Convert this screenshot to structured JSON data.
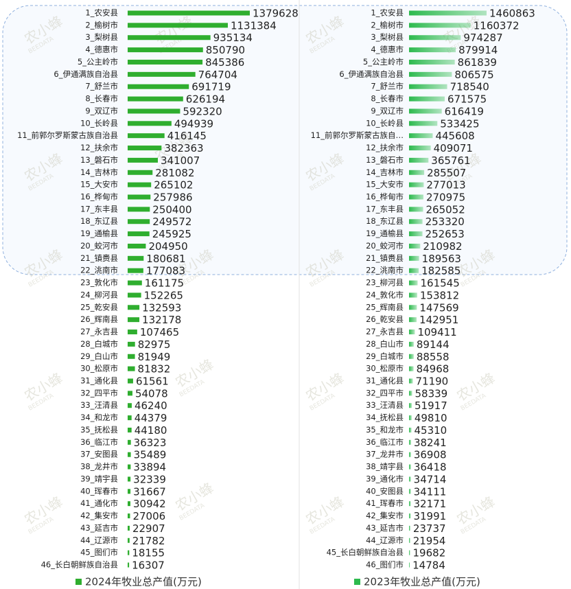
{
  "watermark": {
    "text": "农小蜂",
    "sub": "BEEDATA"
  },
  "chart_data": [
    {
      "type": "bar",
      "orientation": "horizontal",
      "categories": [
        "1_农安县",
        "2_榆树市",
        "3_梨树县",
        "4_德惠市",
        "5_公主岭市",
        "6_伊通满族自治县",
        "7_舒兰市",
        "8_长春市",
        "9_双辽市",
        "10_长岭县",
        "11_前郭尔罗斯蒙古族自治县",
        "12_扶余市",
        "13_磐石市",
        "14_吉林市",
        "15_大安市",
        "16_桦甸市",
        "17_东丰县",
        "18_东辽县",
        "19_通榆县",
        "20_蛟河市",
        "21_镇赉县",
        "22_洮南市",
        "23_敦化市",
        "24_柳河县",
        "25_乾安县",
        "26_辉南县",
        "27_永吉县",
        "28_白城市",
        "29_白山市",
        "30_松原市",
        "31_通化县",
        "32_四平市",
        "33_汪清县",
        "34_和龙市",
        "35_抚松县",
        "36_临江市",
        "37_安图县",
        "38_龙井市",
        "39_靖宇县",
        "40_珲春市",
        "41_通化市",
        "42_集安市",
        "43_延吉市",
        "44_辽源市",
        "45_图们市",
        "46_长白朝鲜族自治县"
      ],
      "series": [
        {
          "name": "2024年牧业总产值(万元)",
          "color": "#2fae2f",
          "gradient": false,
          "values": [
            1379628,
            1131384,
            935134,
            850790,
            845386,
            764704,
            691719,
            626194,
            592320,
            494939,
            416145,
            382363,
            341007,
            281082,
            265102,
            257986,
            250400,
            249572,
            245925,
            204950,
            180681,
            177083,
            161175,
            152265,
            132593,
            132178,
            107465,
            82975,
            81949,
            81832,
            61561,
            54078,
            46240,
            44379,
            44180,
            36323,
            35489,
            33894,
            32339,
            31667,
            30942,
            27006,
            22907,
            21782,
            18155,
            16307
          ]
        }
      ]
    },
    {
      "type": "bar",
      "orientation": "horizontal",
      "categories": [
        "1_农安县",
        "2_榆树市",
        "3_梨树县",
        "4_德惠市",
        "5_公主岭市",
        "6_伊通满族自治县",
        "7_舒兰市",
        "8_长春市",
        "9_双辽市",
        "10_长岭县",
        "11_前郭尔罗斯蒙古族自…",
        "12_扶余市",
        "13_磐石市",
        "14_吉林市",
        "15_大安市",
        "16_桦甸市",
        "17_东丰县",
        "18_东辽县",
        "19_通榆县",
        "20_蛟河市",
        "21_镇赉县",
        "22_洮南市",
        "23_柳河县",
        "24_敦化市",
        "25_辉南县",
        "26_乾安县",
        "27_永吉县",
        "28_白山市",
        "29_白城市",
        "30_松原市",
        "31_通化县",
        "32_四平市",
        "33_汪清县",
        "34_抚松县",
        "35_和龙市",
        "36_临江市",
        "37_龙井市",
        "38_靖宇县",
        "39_通化市",
        "40_安图县",
        "41_珲春市",
        "42_集安市",
        "43_延吉市",
        "44_辽源市",
        "45_长白朝鲜族自治县",
        "46_图们市"
      ],
      "series": [
        {
          "name": "2023年牧业总产值(万元)",
          "color": "#2dba4e",
          "gradient": true,
          "values": [
            1460863,
            1160372,
            974287,
            879914,
            861839,
            806575,
            718540,
            671575,
            616419,
            533425,
            445608,
            409071,
            365761,
            285507,
            277013,
            270975,
            265052,
            253320,
            252653,
            210982,
            189563,
            182585,
            161545,
            153812,
            147569,
            142951,
            109411,
            89144,
            88558,
            84968,
            71190,
            58339,
            51917,
            49810,
            45310,
            38241,
            36908,
            36418,
            34714,
            34111,
            32171,
            31991,
            23737,
            21954,
            19682,
            14784
          ]
        }
      ]
    }
  ]
}
